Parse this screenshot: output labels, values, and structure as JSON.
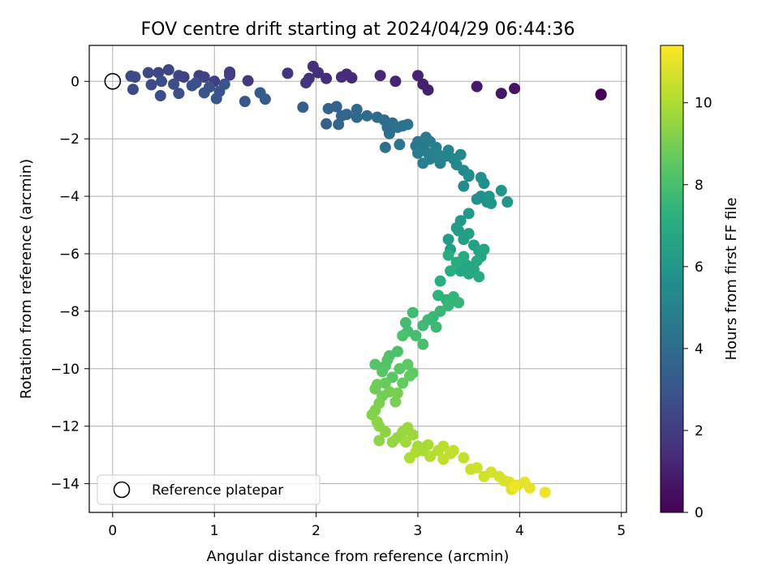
{
  "chart_data": {
    "type": "scatter",
    "title": "FOV centre drift starting at 2024/04/29 06:44:36",
    "xlabel": "Angular distance from reference (arcmin)",
    "ylabel": "Rotation from reference (arcmin)",
    "xlim": [
      -0.23,
      5.05
    ],
    "ylim": [
      -15.0,
      1.25
    ],
    "xticks": [
      0,
      1,
      2,
      3,
      4,
      5
    ],
    "yticks": [
      0,
      -2,
      -4,
      -6,
      -8,
      -10,
      -12,
      -14
    ],
    "grid": true,
    "legend": {
      "placement": "lower-left",
      "entries": [
        "Reference platepar"
      ]
    },
    "colorbar": {
      "label": "Hours from first FF file",
      "min": 0,
      "max": 11.4,
      "ticks": [
        0,
        2,
        4,
        6,
        8,
        10
      ],
      "colormap": "viridis"
    },
    "reference_point": {
      "x": 0,
      "y": 0
    },
    "series": [
      {
        "points": [
          [
            4.8,
            -0.47,
            0.0
          ],
          [
            4.8,
            -0.45,
            0.05
          ],
          [
            3.95,
            -0.25,
            0.6
          ],
          [
            3.82,
            -0.42,
            0.7
          ],
          [
            3.58,
            -0.18,
            0.8
          ],
          [
            3.1,
            -0.3,
            1.0
          ],
          [
            3.05,
            -0.1,
            1.05
          ],
          [
            3.0,
            0.2,
            1.1
          ],
          [
            2.78,
            0.0,
            1.15
          ],
          [
            2.63,
            0.2,
            1.2
          ],
          [
            2.35,
            0.12,
            1.3
          ],
          [
            2.3,
            0.25,
            1.35
          ],
          [
            2.25,
            0.15,
            1.4
          ],
          [
            2.1,
            0.1,
            1.45
          ],
          [
            2.02,
            0.3,
            1.5
          ],
          [
            1.97,
            0.52,
            1.55
          ],
          [
            1.93,
            0.1,
            1.6
          ],
          [
            1.9,
            -0.05,
            1.65
          ],
          [
            1.72,
            0.28,
            1.7
          ],
          [
            1.33,
            0.02,
            1.9
          ],
          [
            1.15,
            0.32,
            2.0
          ],
          [
            1.15,
            0.22,
            2.05
          ],
          [
            1.0,
            0.0,
            2.1
          ],
          [
            0.9,
            0.15,
            2.15
          ],
          [
            0.85,
            0.2,
            2.2
          ],
          [
            0.7,
            0.15,
            2.25
          ],
          [
            0.65,
            0.2,
            2.3
          ],
          [
            0.55,
            0.4,
            2.35
          ],
          [
            0.45,
            0.3,
            2.4
          ],
          [
            0.35,
            0.3,
            2.45
          ],
          [
            0.22,
            0.15,
            2.5
          ],
          [
            0.18,
            0.18,
            2.52
          ],
          [
            0.2,
            -0.28,
            2.55
          ],
          [
            0.38,
            -0.12,
            2.6
          ],
          [
            0.47,
            -0.5,
            2.65
          ],
          [
            0.48,
            0.0,
            2.68
          ],
          [
            0.6,
            -0.1,
            2.7
          ],
          [
            0.65,
            -0.42,
            2.75
          ],
          [
            0.78,
            -0.15,
            2.8
          ],
          [
            0.82,
            -0.05,
            2.82
          ],
          [
            0.9,
            -0.4,
            2.85
          ],
          [
            0.95,
            -0.2,
            2.9
          ],
          [
            1.05,
            -0.35,
            2.95
          ],
          [
            1.02,
            -0.6,
            3.0
          ],
          [
            1.1,
            -0.1,
            3.05
          ],
          [
            1.3,
            -0.7,
            3.1
          ],
          [
            1.45,
            -0.4,
            3.2
          ],
          [
            1.5,
            -0.62,
            3.25
          ],
          [
            1.87,
            -0.9,
            3.4
          ],
          [
            2.1,
            -1.48,
            3.5
          ],
          [
            2.12,
            -0.95,
            3.55
          ],
          [
            2.2,
            -0.88,
            3.6
          ],
          [
            2.25,
            -1.2,
            3.65
          ],
          [
            2.22,
            -1.5,
            3.7
          ],
          [
            2.3,
            -1.15,
            3.75
          ],
          [
            2.4,
            -1.25,
            3.8
          ],
          [
            2.4,
            -0.98,
            3.85
          ],
          [
            2.5,
            -1.2,
            3.9
          ],
          [
            2.6,
            -1.25,
            3.95
          ],
          [
            2.67,
            -1.35,
            4.0
          ],
          [
            2.7,
            -1.6,
            4.05
          ],
          [
            2.75,
            -1.45,
            4.1
          ],
          [
            2.72,
            -1.82,
            4.15
          ],
          [
            2.68,
            -2.3,
            4.2
          ],
          [
            2.8,
            -1.6,
            4.25
          ],
          [
            2.85,
            -1.55,
            4.3
          ],
          [
            2.9,
            -1.5,
            4.35
          ],
          [
            2.82,
            -2.2,
            4.4
          ],
          [
            2.98,
            -2.25,
            4.5
          ],
          [
            3.0,
            -2.1,
            4.55
          ],
          [
            3.05,
            -2.3,
            4.6
          ],
          [
            3.08,
            -1.95,
            4.65
          ],
          [
            3.12,
            -2.1,
            4.7
          ],
          [
            3.0,
            -2.5,
            4.75
          ],
          [
            3.1,
            -2.5,
            4.8
          ],
          [
            3.05,
            -2.85,
            4.85
          ],
          [
            3.12,
            -2.7,
            4.9
          ],
          [
            3.18,
            -2.3,
            4.95
          ],
          [
            3.2,
            -2.55,
            5.0
          ],
          [
            3.22,
            -2.85,
            5.05
          ],
          [
            3.28,
            -2.6,
            5.1
          ],
          [
            3.3,
            -2.4,
            5.15
          ],
          [
            3.35,
            -2.7,
            5.2
          ],
          [
            3.38,
            -2.9,
            5.25
          ],
          [
            3.42,
            -2.55,
            5.3
          ],
          [
            3.45,
            -3.1,
            5.35
          ],
          [
            3.5,
            -3.3,
            5.4
          ],
          [
            3.45,
            -3.65,
            5.45
          ],
          [
            3.5,
            -3.25,
            5.5
          ],
          [
            3.62,
            -3.35,
            5.6
          ],
          [
            3.65,
            -3.55,
            5.65
          ],
          [
            3.58,
            -4.1,
            5.7
          ],
          [
            3.62,
            -4.0,
            5.75
          ],
          [
            3.68,
            -4.2,
            5.8
          ],
          [
            3.72,
            -4.25,
            5.85
          ],
          [
            3.7,
            -4.0,
            5.9
          ],
          [
            3.82,
            -3.8,
            5.95
          ],
          [
            3.88,
            -4.2,
            6.0
          ],
          [
            3.5,
            -4.6,
            6.1
          ],
          [
            3.42,
            -4.85,
            6.15
          ],
          [
            3.38,
            -5.1,
            6.2
          ],
          [
            3.3,
            -5.5,
            6.25
          ],
          [
            3.32,
            -5.85,
            6.3
          ],
          [
            3.4,
            -5.2,
            6.35
          ],
          [
            3.45,
            -5.5,
            6.4
          ],
          [
            3.5,
            -5.3,
            6.45
          ],
          [
            3.55,
            -5.7,
            6.5
          ],
          [
            3.6,
            -5.9,
            6.55
          ],
          [
            3.62,
            -6.1,
            6.6
          ],
          [
            3.65,
            -5.85,
            6.65
          ],
          [
            3.48,
            -6.4,
            6.7
          ],
          [
            3.5,
            -6.7,
            6.75
          ],
          [
            3.42,
            -6.6,
            6.8
          ],
          [
            3.55,
            -6.55,
            6.85
          ],
          [
            3.58,
            -6.25,
            6.9
          ],
          [
            3.6,
            -6.8,
            6.95
          ],
          [
            3.45,
            -6.1,
            7.0
          ],
          [
            3.38,
            -6.3,
            7.05
          ],
          [
            3.3,
            -6.05,
            7.1
          ],
          [
            3.32,
            -6.6,
            7.15
          ],
          [
            3.22,
            -6.95,
            7.2
          ],
          [
            3.2,
            -7.45,
            7.3
          ],
          [
            3.28,
            -7.6,
            7.35
          ],
          [
            3.35,
            -7.5,
            7.4
          ],
          [
            3.4,
            -7.7,
            7.45
          ],
          [
            3.3,
            -7.8,
            7.5
          ],
          [
            3.22,
            -8.0,
            7.55
          ],
          [
            3.15,
            -8.2,
            7.6
          ],
          [
            3.1,
            -8.3,
            7.65
          ],
          [
            3.18,
            -8.55,
            7.7
          ],
          [
            3.05,
            -8.5,
            7.75
          ],
          [
            2.95,
            -8.05,
            7.8
          ],
          [
            2.88,
            -8.4,
            7.85
          ],
          [
            2.9,
            -8.7,
            7.9
          ],
          [
            2.98,
            -8.85,
            7.95
          ],
          [
            3.05,
            -9.15,
            8.0
          ],
          [
            2.85,
            -8.85,
            8.05
          ],
          [
            2.8,
            -9.4,
            8.1
          ],
          [
            2.72,
            -9.55,
            8.15
          ],
          [
            2.7,
            -9.7,
            8.2
          ],
          [
            2.68,
            -9.9,
            8.25
          ],
          [
            2.58,
            -9.85,
            8.3
          ],
          [
            2.65,
            -10.1,
            8.35
          ],
          [
            2.75,
            -10.3,
            8.4
          ],
          [
            2.82,
            -10.0,
            8.45
          ],
          [
            2.9,
            -9.85,
            8.5
          ],
          [
            2.95,
            -10.15,
            8.55
          ],
          [
            2.92,
            -10.25,
            8.6
          ],
          [
            2.85,
            -10.5,
            8.65
          ],
          [
            2.68,
            -10.5,
            8.7
          ],
          [
            2.6,
            -10.55,
            8.8
          ],
          [
            2.58,
            -10.7,
            8.85
          ],
          [
            2.65,
            -10.95,
            8.9
          ],
          [
            2.72,
            -10.8,
            8.95
          ],
          [
            2.8,
            -10.85,
            9.0
          ],
          [
            2.78,
            -11.15,
            9.05
          ],
          [
            2.62,
            -11.2,
            9.1
          ],
          [
            2.58,
            -11.45,
            9.15
          ],
          [
            2.55,
            -11.6,
            9.2
          ],
          [
            2.6,
            -11.85,
            9.3
          ],
          [
            2.62,
            -12.0,
            9.35
          ],
          [
            2.68,
            -12.2,
            9.4
          ],
          [
            2.62,
            -12.5,
            9.45
          ],
          [
            2.75,
            -12.55,
            9.5
          ],
          [
            2.8,
            -12.4,
            9.55
          ],
          [
            2.85,
            -12.2,
            9.6
          ],
          [
            2.9,
            -12.05,
            9.65
          ],
          [
            2.95,
            -12.3,
            9.7
          ],
          [
            2.88,
            -12.55,
            9.75
          ],
          [
            3.0,
            -12.7,
            9.8
          ],
          [
            3.05,
            -12.85,
            9.85
          ],
          [
            3.1,
            -12.65,
            9.9
          ],
          [
            2.98,
            -12.9,
            9.95
          ],
          [
            2.92,
            -13.1,
            10.0
          ],
          [
            3.12,
            -13.05,
            10.1
          ],
          [
            3.2,
            -12.85,
            10.15
          ],
          [
            3.25,
            -12.7,
            10.2
          ],
          [
            3.32,
            -12.95,
            10.25
          ],
          [
            3.25,
            -13.15,
            10.3
          ],
          [
            3.35,
            -12.85,
            10.35
          ],
          [
            3.45,
            -13.1,
            10.4
          ],
          [
            3.52,
            -13.5,
            10.5
          ],
          [
            3.58,
            -13.45,
            10.55
          ],
          [
            3.65,
            -13.75,
            10.6
          ],
          [
            3.72,
            -13.6,
            10.65
          ],
          [
            3.8,
            -13.75,
            10.7
          ],
          [
            3.85,
            -13.9,
            10.75
          ],
          [
            3.9,
            -13.95,
            10.8
          ],
          [
            3.92,
            -14.2,
            10.85
          ],
          [
            3.98,
            -14.05,
            10.9
          ],
          [
            4.05,
            -13.95,
            10.95
          ],
          [
            4.1,
            -14.15,
            11.0
          ],
          [
            4.25,
            -14.3,
            11.1
          ],
          [
            3.95,
            -14.1,
            11.15
          ]
        ]
      }
    ]
  }
}
